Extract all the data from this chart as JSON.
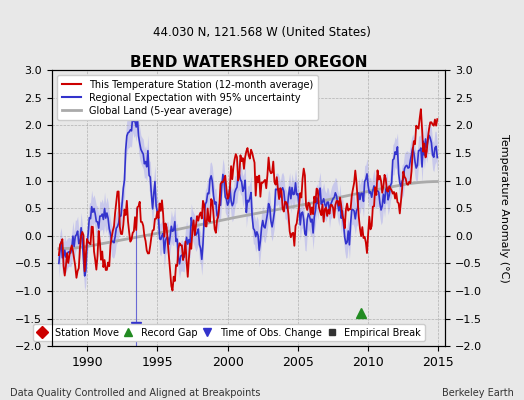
{
  "title": "BEND WATERSHED OREGON",
  "subtitle": "44.030 N, 121.568 W (United States)",
  "ylabel": "Temperature Anomaly (°C)",
  "footer_left": "Data Quality Controlled and Aligned at Breakpoints",
  "footer_right": "Berkeley Earth",
  "xlim": [
    1987.5,
    2015.5
  ],
  "ylim": [
    -2,
    3
  ],
  "yticks": [
    -2,
    -1.5,
    -1,
    -0.5,
    0,
    0.5,
    1,
    1.5,
    2,
    2.5,
    3
  ],
  "xticks": [
    1990,
    1995,
    2000,
    2005,
    2010,
    2015
  ],
  "bg_color": "#e8e8e8",
  "plot_bg_color": "#e8e8e8",
  "legend_items": [
    {
      "label": "This Temperature Station (12-month average)",
      "color": "#cc0000",
      "lw": 1.5
    },
    {
      "label": "Regional Expectation with 95% uncertainty",
      "color": "#3333cc",
      "lw": 1.5
    },
    {
      "label": "Global Land (5-year average)",
      "color": "#aaaaaa",
      "lw": 2.0
    }
  ],
  "marker_items": [
    {
      "label": "Station Move",
      "marker": "D",
      "color": "#cc0000"
    },
    {
      "label": "Record Gap",
      "marker": "^",
      "color": "#228B22"
    },
    {
      "label": "Time of Obs. Change",
      "marker": "v",
      "color": "#3333cc"
    },
    {
      "label": "Empirical Break",
      "marker": "s",
      "color": "#333333"
    }
  ],
  "record_gap_x": 2009.5,
  "record_gap_y": -1.4,
  "time_obs_x": 1993.5,
  "time_obs_y": -1.65
}
